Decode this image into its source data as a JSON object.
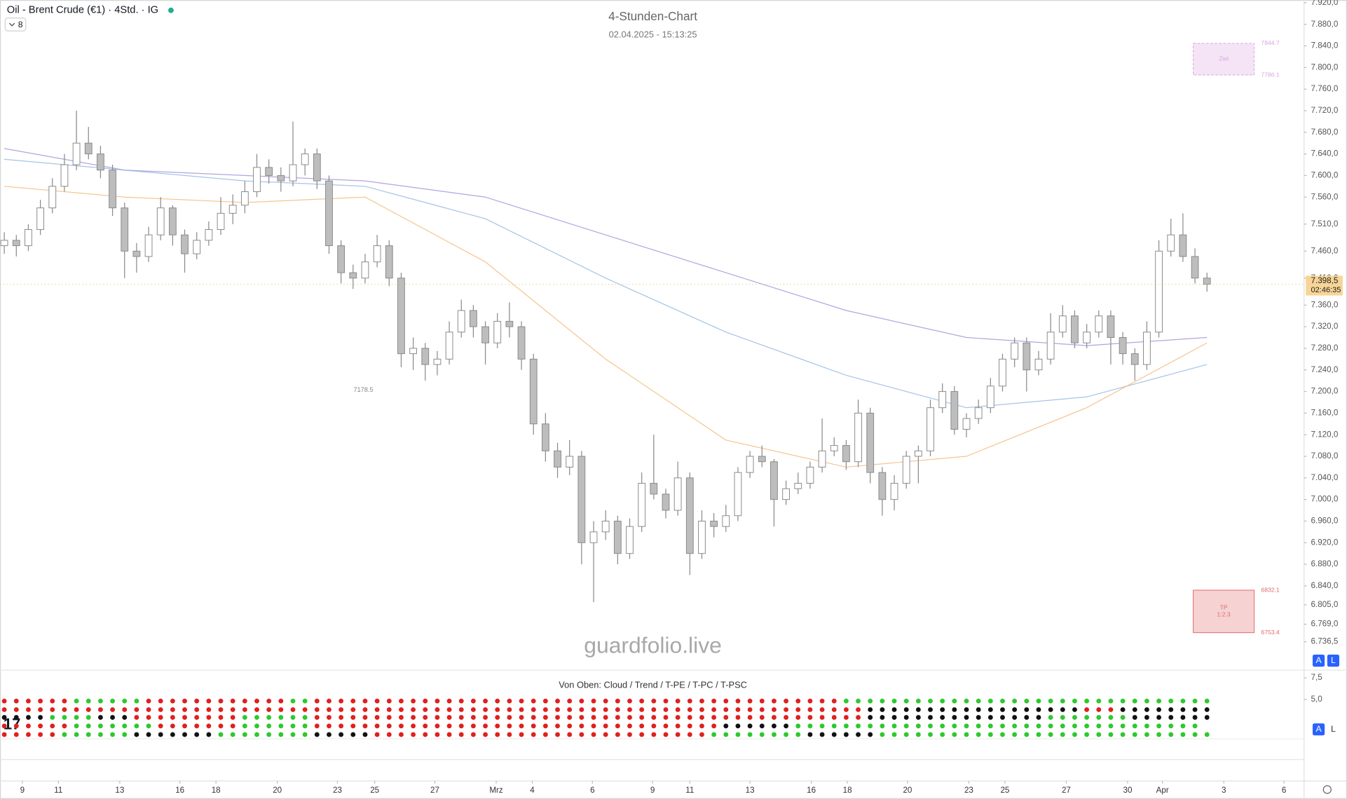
{
  "chart_data": {
    "type": "candlestick",
    "title": "Oil - Brent Crude (€1) · 4Std. · IG",
    "badge": "8",
    "chart_title": "4-Stunden-Chart",
    "subtitle": "02.04.2025 - 15:13:25",
    "watermark": "guardfolio.live",
    "up_color": "#ffffff",
    "down_color": "#bdbdbd",
    "wick_color": "#8a8a8a",
    "ohlc": [
      [
        7470,
        7495,
        7455,
        7480
      ],
      [
        7480,
        7490,
        7450,
        7470
      ],
      [
        7470,
        7510,
        7460,
        7500
      ],
      [
        7500,
        7555,
        7490,
        7540
      ],
      [
        7540,
        7595,
        7530,
        7580
      ],
      [
        7580,
        7640,
        7570,
        7620
      ],
      [
        7620,
        7720,
        7610,
        7660
      ],
      [
        7660,
        7690,
        7630,
        7640
      ],
      [
        7640,
        7655,
        7595,
        7610
      ],
      [
        7610,
        7620,
        7525,
        7540
      ],
      [
        7540,
        7550,
        7410,
        7460
      ],
      [
        7460,
        7475,
        7420,
        7450
      ],
      [
        7450,
        7505,
        7440,
        7490
      ],
      [
        7490,
        7560,
        7480,
        7540
      ],
      [
        7540,
        7545,
        7470,
        7490
      ],
      [
        7490,
        7500,
        7420,
        7455
      ],
      [
        7455,
        7495,
        7445,
        7480
      ],
      [
        7480,
        7515,
        7470,
        7500
      ],
      [
        7500,
        7560,
        7490,
        7530
      ],
      [
        7530,
        7565,
        7510,
        7545
      ],
      [
        7545,
        7590,
        7530,
        7570
      ],
      [
        7570,
        7640,
        7560,
        7615
      ],
      [
        7615,
        7630,
        7585,
        7600
      ],
      [
        7600,
        7615,
        7570,
        7590
      ],
      [
        7590,
        7700,
        7580,
        7620
      ],
      [
        7620,
        7650,
        7600,
        7640
      ],
      [
        7640,
        7650,
        7575,
        7590
      ],
      [
        7590,
        7600,
        7455,
        7470
      ],
      [
        7470,
        7480,
        7400,
        7420
      ],
      [
        7420,
        7435,
        7390,
        7410
      ],
      [
        7410,
        7455,
        7400,
        7440
      ],
      [
        7440,
        7490,
        7430,
        7470
      ],
      [
        7470,
        7480,
        7395,
        7410
      ],
      [
        7410,
        7420,
        7245,
        7270
      ],
      [
        7270,
        7300,
        7240,
        7280
      ],
      [
        7280,
        7290,
        7220,
        7250
      ],
      [
        7250,
        7275,
        7230,
        7260
      ],
      [
        7260,
        7330,
        7250,
        7310
      ],
      [
        7310,
        7370,
        7300,
        7350
      ],
      [
        7350,
        7360,
        7300,
        7320
      ],
      [
        7320,
        7330,
        7250,
        7290
      ],
      [
        7290,
        7345,
        7280,
        7330
      ],
      [
        7330,
        7365,
        7300,
        7320
      ],
      [
        7320,
        7330,
        7240,
        7260
      ],
      [
        7260,
        7270,
        7120,
        7140
      ],
      [
        7140,
        7160,
        7070,
        7090
      ],
      [
        7090,
        7105,
        7040,
        7060
      ],
      [
        7060,
        7110,
        7045,
        7080
      ],
      [
        7080,
        7090,
        6880,
        6920
      ],
      [
        6920,
        6960,
        6810,
        6940
      ],
      [
        6940,
        6980,
        6925,
        6960
      ],
      [
        6960,
        6970,
        6880,
        6900
      ],
      [
        6900,
        6965,
        6890,
        6950
      ],
      [
        6950,
        7050,
        6940,
        7030
      ],
      [
        7030,
        7120,
        7000,
        7010
      ],
      [
        7010,
        7020,
        6965,
        6980
      ],
      [
        6980,
        7070,
        6970,
        7040
      ],
      [
        7040,
        7050,
        6860,
        6900
      ],
      [
        6900,
        6980,
        6890,
        6960
      ],
      [
        6960,
        6975,
        6930,
        6950
      ],
      [
        6950,
        6990,
        6940,
        6970
      ],
      [
        6970,
        7060,
        6960,
        7050
      ],
      [
        7050,
        7090,
        7040,
        7080
      ],
      [
        7080,
        7100,
        7060,
        7070
      ],
      [
        7070,
        7075,
        6950,
        7000
      ],
      [
        7000,
        7035,
        6990,
        7020
      ],
      [
        7020,
        7050,
        7010,
        7030
      ],
      [
        7030,
        7070,
        7020,
        7060
      ],
      [
        7060,
        7150,
        7050,
        7090
      ],
      [
        7090,
        7115,
        7080,
        7100
      ],
      [
        7100,
        7110,
        7055,
        7070
      ],
      [
        7070,
        7185,
        7060,
        7160
      ],
      [
        7160,
        7170,
        7030,
        7050
      ],
      [
        7050,
        7060,
        6970,
        7000
      ],
      [
        7000,
        7045,
        6980,
        7030
      ],
      [
        7030,
        7090,
        7020,
        7080
      ],
      [
        7080,
        7100,
        7030,
        7090
      ],
      [
        7090,
        7185,
        7080,
        7170
      ],
      [
        7170,
        7215,
        7160,
        7200
      ],
      [
        7200,
        7210,
        7120,
        7130
      ],
      [
        7130,
        7160,
        7115,
        7150
      ],
      [
        7150,
        7185,
        7140,
        7170
      ],
      [
        7170,
        7225,
        7160,
        7210
      ],
      [
        7210,
        7270,
        7200,
        7260
      ],
      [
        7260,
        7300,
        7245,
        7290
      ],
      [
        7290,
        7300,
        7200,
        7240
      ],
      [
        7240,
        7275,
        7230,
        7260
      ],
      [
        7260,
        7345,
        7250,
        7310
      ],
      [
        7310,
        7360,
        7300,
        7340
      ],
      [
        7340,
        7350,
        7280,
        7290
      ],
      [
        7290,
        7325,
        7280,
        7310
      ],
      [
        7310,
        7350,
        7300,
        7340
      ],
      [
        7340,
        7350,
        7250,
        7300
      ],
      [
        7300,
        7310,
        7250,
        7270
      ],
      [
        7270,
        7280,
        7220,
        7250
      ],
      [
        7250,
        7330,
        7240,
        7310
      ],
      [
        7310,
        7480,
        7300,
        7460
      ],
      [
        7460,
        7520,
        7450,
        7490
      ],
      [
        7490,
        7530,
        7440,
        7450
      ],
      [
        7450,
        7465,
        7400,
        7410
      ],
      [
        7410,
        7420,
        7385,
        7398.5
      ]
    ],
    "xlim": [
      -0.357,
      108.07
    ],
    "xticks": [
      {
        "value": 1.5,
        "label": "9"
      },
      {
        "value": 4.5,
        "label": "11"
      },
      {
        "value": 9.6,
        "label": "13"
      },
      {
        "value": 14.6,
        "label": "16"
      },
      {
        "value": 17.6,
        "label": "18"
      },
      {
        "value": 22.7,
        "label": "20"
      },
      {
        "value": 27.7,
        "label": "23"
      },
      {
        "value": 30.8,
        "label": "25"
      },
      {
        "value": 35.8,
        "label": "27"
      },
      {
        "value": 40.9,
        "label": "Mrz"
      },
      {
        "value": 43.9,
        "label": "4"
      },
      {
        "value": 48.9,
        "label": "6"
      },
      {
        "value": 53.9,
        "label": "9"
      },
      {
        "value": 57,
        "label": "11"
      },
      {
        "value": 62,
        "label": "13"
      },
      {
        "value": 67.1,
        "label": "16"
      },
      {
        "value": 70.1,
        "label": "18"
      },
      {
        "value": 75.1,
        "label": "20"
      },
      {
        "value": 80.2,
        "label": "23"
      },
      {
        "value": 83.2,
        "label": "25"
      },
      {
        "value": 88.3,
        "label": "27"
      },
      {
        "value": 93.4,
        "label": "30"
      },
      {
        "value": 96.3,
        "label": "Apr"
      },
      {
        "value": 101.4,
        "label": "3"
      },
      {
        "value": 106.4,
        "label": "6"
      }
    ],
    "ylim": [
      6684,
      7925
    ],
    "yticks": [
      {
        "value": 7920,
        "label": "7.920,0"
      },
      {
        "value": 7880,
        "label": "7.880,0"
      },
      {
        "value": 7840,
        "label": "7.840,0"
      },
      {
        "value": 7800,
        "label": "7.800,0"
      },
      {
        "value": 7760,
        "label": "7.760,0"
      },
      {
        "value": 7720,
        "label": "7.720,0"
      },
      {
        "value": 7680,
        "label": "7.680,0"
      },
      {
        "value": 7640,
        "label": "7.640,0"
      },
      {
        "value": 7600,
        "label": "7.600,0"
      },
      {
        "value": 7560,
        "label": "7.560,0"
      },
      {
        "value": 7510,
        "label": "7.510,0"
      },
      {
        "value": 7460,
        "label": "7.460,0"
      },
      {
        "value": 7410,
        "label": "7.410,0"
      },
      {
        "value": 7360,
        "label": "7.360,0"
      },
      {
        "value": 7320,
        "label": "7.320,0"
      },
      {
        "value": 7280,
        "label": "7.280,0"
      },
      {
        "value": 7240,
        "label": "7.240,0"
      },
      {
        "value": 7200,
        "label": "7.200,0"
      },
      {
        "value": 7160,
        "label": "7.160,0"
      },
      {
        "value": 7120,
        "label": "7.120,0"
      },
      {
        "value": 7080,
        "label": "7.080,0"
      },
      {
        "value": 7040,
        "label": "7.040,0"
      },
      {
        "value": 7000,
        "label": "7.000,0"
      },
      {
        "value": 6960,
        "label": "6.960,0"
      },
      {
        "value": 6920,
        "label": "6.920,0"
      },
      {
        "value": 6880,
        "label": "6.880,0"
      },
      {
        "value": 6840,
        "label": "6.840,0"
      },
      {
        "value": 6805,
        "label": "6.805,0"
      },
      {
        "value": 6769,
        "label": "6.769,0"
      },
      {
        "value": 6736.5,
        "label": "6.736,5"
      }
    ],
    "grid": false,
    "last_price": {
      "value": 7398.5,
      "label": "7.398,5"
    },
    "countdown": "02:46:35",
    "ma_lines": [
      {
        "color": "#9c8fd6",
        "x": [
          0,
          10,
          20,
          30,
          40,
          50,
          60,
          70,
          80,
          90,
          100
        ],
        "values": [
          7650,
          7610,
          7600,
          7590,
          7560,
          7490,
          7420,
          7350,
          7300,
          7285,
          7300
        ]
      },
      {
        "color": "#8fb5e0",
        "x": [
          0,
          10,
          20,
          30,
          40,
          50,
          60,
          70,
          80,
          90,
          100
        ],
        "values": [
          7630,
          7610,
          7590,
          7580,
          7520,
          7410,
          7310,
          7230,
          7170,
          7190,
          7250
        ]
      },
      {
        "color": "#f2b774",
        "x": [
          0,
          10,
          20,
          30,
          40,
          50,
          60,
          70,
          80,
          90,
          100
        ],
        "values": [
          7580,
          7560,
          7550,
          7560,
          7440,
          7260,
          7110,
          7060,
          7080,
          7170,
          7290
        ]
      }
    ],
    "zones": [
      {
        "label": [
          "Ziel"
        ],
        "top": 7844.7,
        "bottom": 7786.1,
        "color": "#d9a6e0"
      },
      {
        "label": [
          "TP",
          "1:2.3"
        ],
        "top": 6832.1,
        "bottom": 6753.4,
        "color": "#e06a6a"
      }
    ],
    "annotation": 7178.5,
    "buttons": [
      "A",
      "L"
    ],
    "indicator": {
      "title": "Von Oben: Cloud / Trend / T-PE / T-PC / T-PSC",
      "ylim": [
        0,
        8.3
      ],
      "yticks": [
        {
          "value": 7.5,
          "label": "7,5"
        },
        {
          "value": 5,
          "label": "5,0"
        }
      ],
      "state_colors": {
        "g": "#2ec82e",
        "r": "#e0201e",
        "k": "#111111"
      },
      "rows": [
        "rrrrrrggggggrrrrrrrrrrrrggrrrrrrrrrrrrrrrrrrrrrrrrrrrrrrrrrrrrrrrrrrrrggggggggggggggggggggggggggggggg",
        "rrrrrrrrrrrrrrrrrrrrrrrrrrrrrrrrrrrrrrrrrrrrrrrrrrrrrrrrrrrrrrrrrrrrrrrrkkkkkkkkkkkkkkkkkkrrrkkkkkkkk",
        "kkkkggggkkkrrrrrrrrrggggggrrrrrrrrrrrrrrrrrrrrrrrrrrrrrrrrrrrrrrrrrrrrrrkkkkkkkkkkkkkkkgggggggkkkkkkk",
        "rrrrrrgggggggrrrrrrrggggggrrrrrrrrrrrrrrrrrrrrrrrrrrrrrrrrrrkkkkkkgggggggggggggggggggggggggggggggggg",
        "rrrrrggggggkkkkkkkggggggggkkkkkrrrrrrrrrrrrrrrrrrrrrrrrrrrrggggggggkkkkkkgggggggggggggggggggggggggggg"
      ]
    }
  }
}
